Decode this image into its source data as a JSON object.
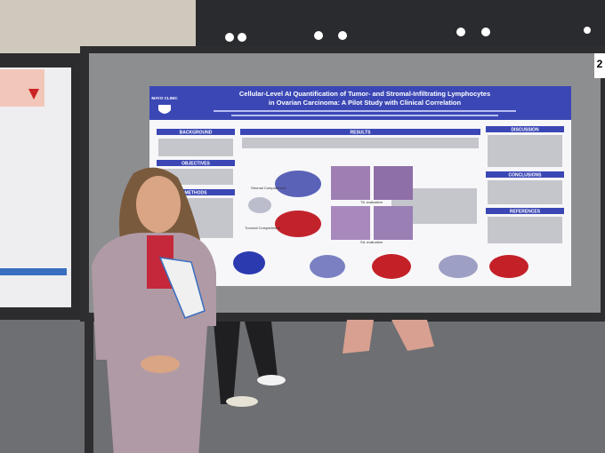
{
  "board_number": "2",
  "poster": {
    "logo": "MAYO CLINIC",
    "title_lines": [
      "Cellular-Level AI Quantification of Tumor- and Stromal-Infiltrating Lymphocytes",
      "in Ovarian Carcinoma: A Pilot Study with Clinical Correlation"
    ],
    "sections": {
      "background": "BACKGROUND",
      "objectives": "OBJECTIVES",
      "methods": "METHODS",
      "results": "RESULTS",
      "discussion": "DISCUSSION",
      "conclusions": "CONCLUSIONS",
      "references": "REFERENCES"
    },
    "figure_labels": {
      "stromal": "Stromal Compartment",
      "tumoral": "Tumoral Compartment",
      "til": "TIL evaluation",
      "sil": "SIL evaluation"
    }
  }
}
